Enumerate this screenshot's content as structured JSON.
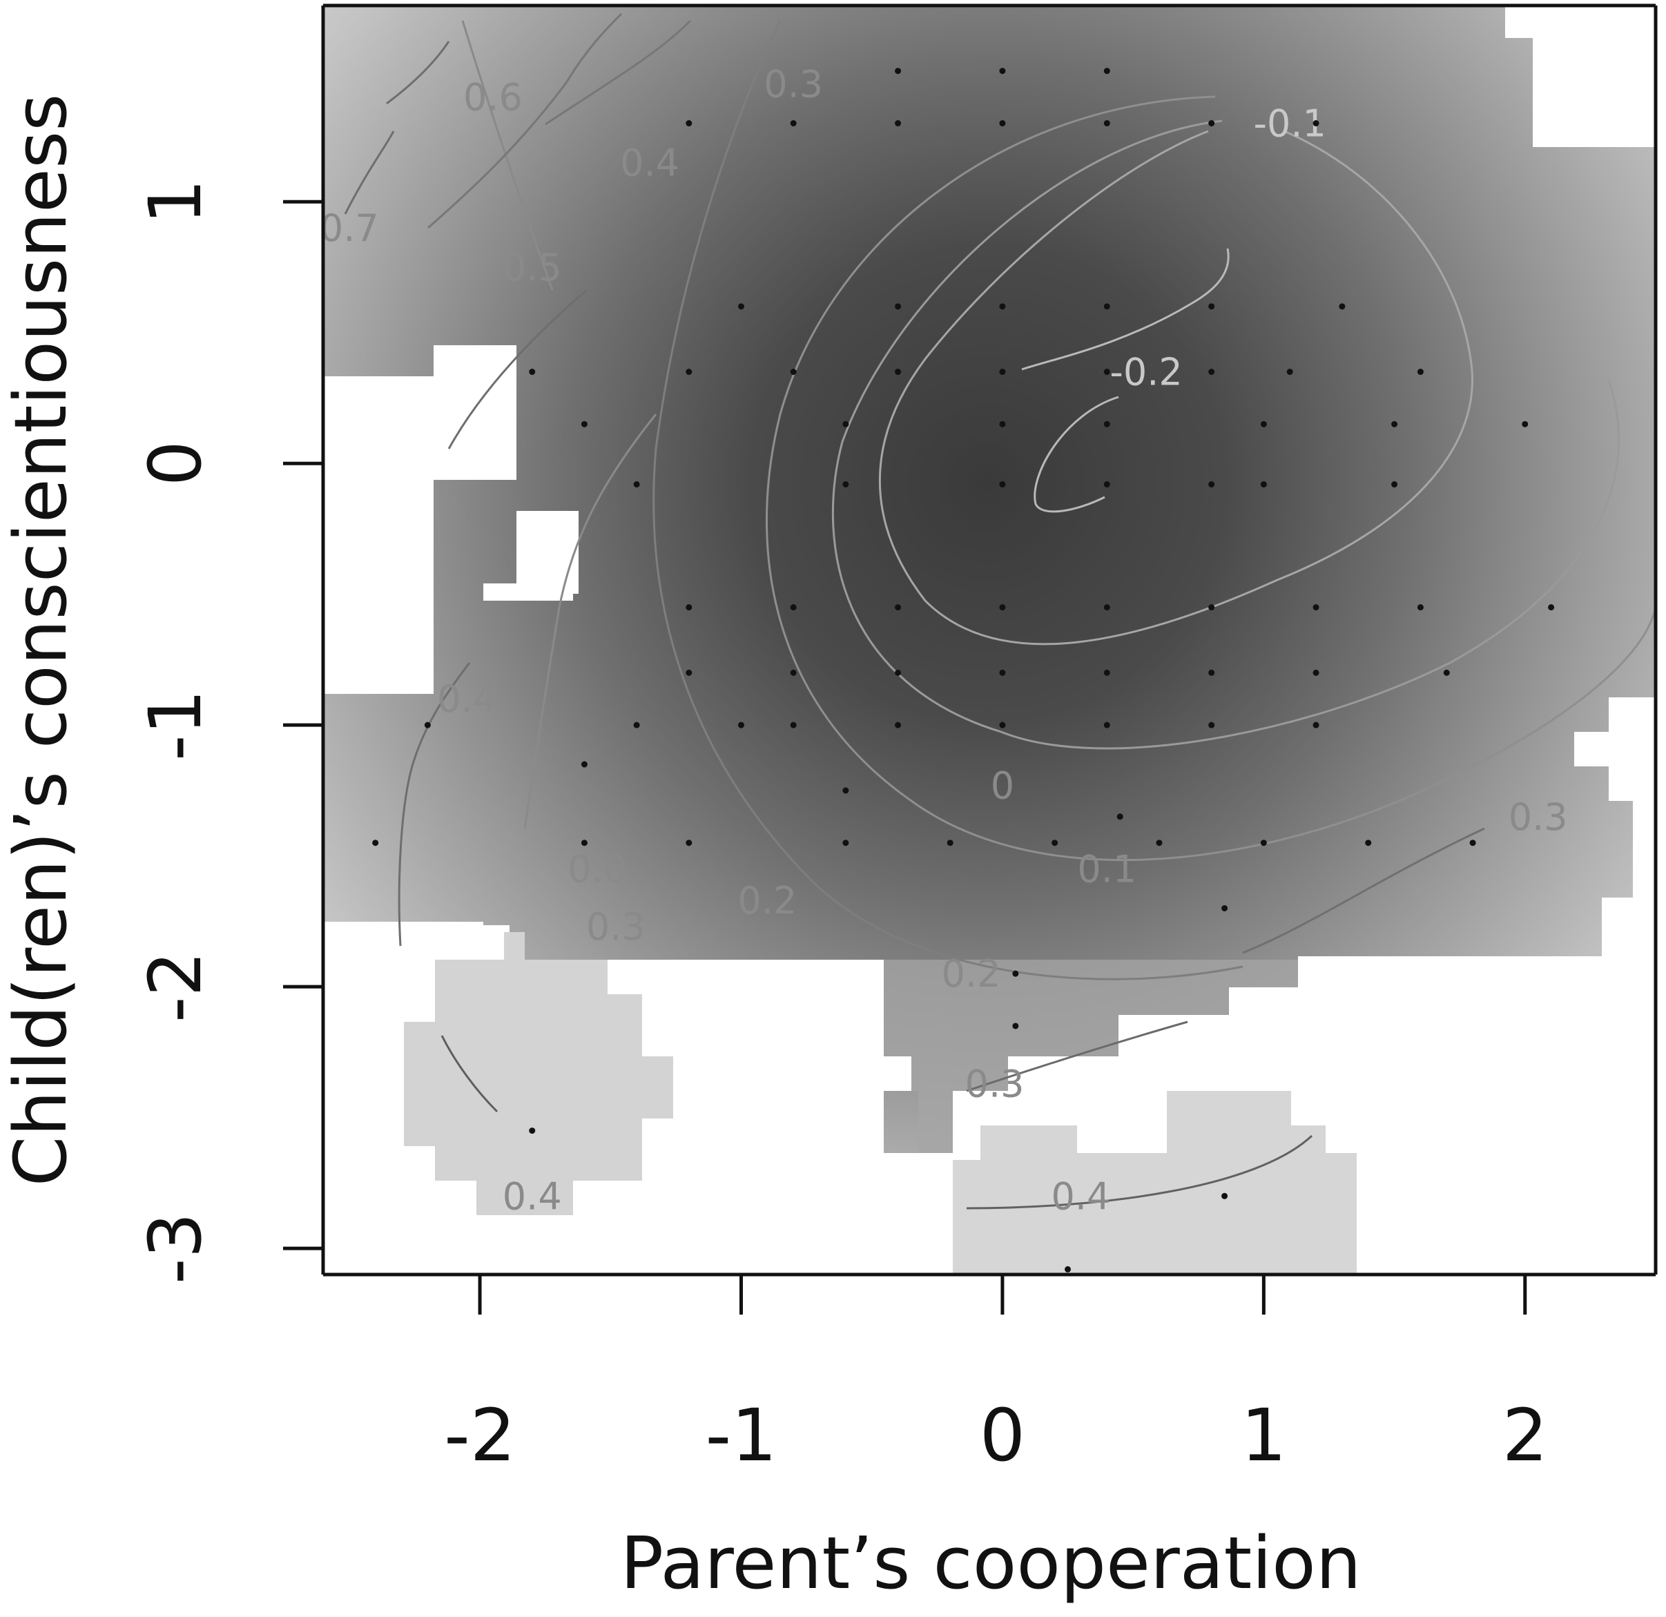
{
  "chart_data": {
    "type": "heatmap",
    "title": "",
    "xlabel": "Parent’s cooperation",
    "ylabel": "Child(ren)’s conscientiousness",
    "xlim": [
      -2.6,
      2.5
    ],
    "ylim": [
      -3.1,
      1.75
    ],
    "xticks": [
      -2,
      -1,
      0,
      1,
      2
    ],
    "yticks": [
      -3,
      -2,
      -1,
      0,
      1
    ],
    "colormap": "grayscale: low values dark, high values light",
    "surface_colors": {
      "low": "#3a3a3a",
      "high": "#f2f2f2"
    },
    "grid": false,
    "legend": "none",
    "contour_levels": [
      -0.2,
      -0.1,
      0,
      0.1,
      0.2,
      0.3,
      0.4,
      0.5,
      0.6,
      0.7
    ],
    "contour_labels": [
      {
        "text": "0.7",
        "x": -2.5,
        "y": 0.85
      },
      {
        "text": "0.6",
        "x": -1.95,
        "y": 1.35
      },
      {
        "text": "0.5",
        "x": -1.8,
        "y": 0.7
      },
      {
        "text": "0.4",
        "x": -1.35,
        "y": 1.1
      },
      {
        "text": "0.3",
        "x": -0.8,
        "y": 1.4
      },
      {
        "text": "-0.1",
        "x": 1.1,
        "y": 1.25
      },
      {
        "text": "-0.2",
        "x": 0.55,
        "y": 0.3
      },
      {
        "text": "0.4",
        "x": -2.05,
        "y": -0.95
      },
      {
        "text": "0.0",
        "x": -1.55,
        "y": -1.6
      },
      {
        "text": "0.3",
        "x": -1.48,
        "y": -1.82
      },
      {
        "text": "0.2",
        "x": -0.9,
        "y": -1.72
      },
      {
        "text": "0",
        "x": 0.0,
        "y": -1.28
      },
      {
        "text": "0.1",
        "x": 0.4,
        "y": -1.6
      },
      {
        "text": "0.2",
        "x": -0.12,
        "y": -2.0
      },
      {
        "text": "0.3",
        "x": -0.03,
        "y": -2.42
      },
      {
        "text": "0.4",
        "x": 0.3,
        "y": -2.85
      },
      {
        "text": "0.3",
        "x": 2.05,
        "y": -1.4
      },
      {
        "text": "0.4",
        "x": -1.8,
        "y": -2.85
      }
    ],
    "observation_points": [
      [
        -1.2,
        1.3
      ],
      [
        -0.8,
        1.3
      ],
      [
        -0.4,
        1.3
      ],
      [
        0.0,
        1.3
      ],
      [
        0.4,
        1.3
      ],
      [
        0.8,
        1.3
      ],
      [
        1.2,
        1.3
      ],
      [
        0.0,
        1.5
      ],
      [
        0.4,
        1.5
      ],
      [
        -0.4,
        1.5
      ],
      [
        -1.0,
        0.6
      ],
      [
        -0.4,
        0.6
      ],
      [
        0.0,
        0.6
      ],
      [
        0.4,
        0.6
      ],
      [
        0.8,
        0.6
      ],
      [
        1.3,
        0.6
      ],
      [
        -1.8,
        0.35
      ],
      [
        -1.2,
        0.35
      ],
      [
        -0.8,
        0.35
      ],
      [
        -0.4,
        0.35
      ],
      [
        0.0,
        0.35
      ],
      [
        0.4,
        0.35
      ],
      [
        0.8,
        0.35
      ],
      [
        1.1,
        0.35
      ],
      [
        1.6,
        0.35
      ],
      [
        -1.6,
        0.15
      ],
      [
        -0.6,
        0.15
      ],
      [
        0.0,
        0.15
      ],
      [
        0.4,
        0.15
      ],
      [
        1.0,
        0.15
      ],
      [
        1.5,
        0.15
      ],
      [
        2.0,
        0.15
      ],
      [
        -1.4,
        -0.08
      ],
      [
        -0.6,
        -0.08
      ],
      [
        0.0,
        -0.08
      ],
      [
        0.4,
        -0.08
      ],
      [
        0.8,
        -0.08
      ],
      [
        1.0,
        -0.08
      ],
      [
        1.5,
        -0.08
      ],
      [
        -1.2,
        -0.55
      ],
      [
        -0.8,
        -0.55
      ],
      [
        -0.4,
        -0.55
      ],
      [
        0.0,
        -0.55
      ],
      [
        0.4,
        -0.55
      ],
      [
        0.8,
        -0.55
      ],
      [
        1.2,
        -0.55
      ],
      [
        1.6,
        -0.55
      ],
      [
        2.1,
        -0.55
      ],
      [
        -1.2,
        -0.8
      ],
      [
        -0.8,
        -0.8
      ],
      [
        -0.4,
        -0.8
      ],
      [
        0.0,
        -0.8
      ],
      [
        0.4,
        -0.8
      ],
      [
        0.8,
        -0.8
      ],
      [
        1.2,
        -0.8
      ],
      [
        1.7,
        -0.8
      ],
      [
        -1.4,
        -1.0
      ],
      [
        -0.8,
        -1.0
      ],
      [
        -0.4,
        -1.0
      ],
      [
        0.0,
        -1.0
      ],
      [
        0.4,
        -1.0
      ],
      [
        0.8,
        -1.0
      ],
      [
        1.2,
        -1.0
      ],
      [
        -2.2,
        -1.0
      ],
      [
        -1.6,
        -1.15
      ],
      [
        -0.6,
        -1.25
      ],
      [
        -1.0,
        -1.0
      ],
      [
        -2.4,
        -1.45
      ],
      [
        -1.6,
        -1.45
      ],
      [
        -1.2,
        -1.45
      ],
      [
        -0.6,
        -1.45
      ],
      [
        -0.2,
        -1.45
      ],
      [
        0.2,
        -1.45
      ],
      [
        0.6,
        -1.45
      ],
      [
        1.0,
        -1.45
      ],
      [
        1.4,
        -1.45
      ],
      [
        1.8,
        -1.45
      ],
      [
        0.45,
        -1.35
      ],
      [
        0.85,
        -1.7
      ],
      [
        0.05,
        -1.95
      ],
      [
        0.05,
        -2.15
      ],
      [
        -1.8,
        -2.55
      ],
      [
        0.85,
        -2.8
      ],
      [
        0.25,
        -3.08
      ]
    ]
  }
}
